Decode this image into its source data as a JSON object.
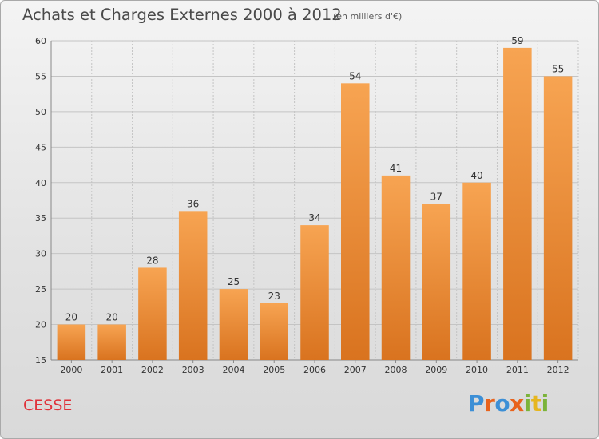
{
  "header": {
    "title": "Achats et Charges Externes 2000 à 2012",
    "subtitle": "(en milliers d'€)"
  },
  "footer": {
    "commune": "CESSE",
    "logo_parts": [
      "P",
      "r",
      "o",
      "x",
      "i",
      "t",
      "i"
    ]
  },
  "colors": {
    "bar_top": "#f7a452",
    "bar_bottom": "#d9731f",
    "grid": "#c4c4c4",
    "commune_text": "#e0323a"
  },
  "chart_data": {
    "type": "bar",
    "categories": [
      "2000",
      "2001",
      "2002",
      "2003",
      "2004",
      "2005",
      "2006",
      "2007",
      "2008",
      "2009",
      "2010",
      "2011",
      "2012"
    ],
    "values": [
      20,
      20,
      28,
      36,
      25,
      23,
      34,
      54,
      41,
      37,
      40,
      59,
      55
    ],
    "ylim": [
      15,
      60
    ],
    "yticks": [
      15,
      20,
      25,
      30,
      35,
      40,
      45,
      50,
      55,
      60
    ],
    "grid": true,
    "data_labels": true
  }
}
